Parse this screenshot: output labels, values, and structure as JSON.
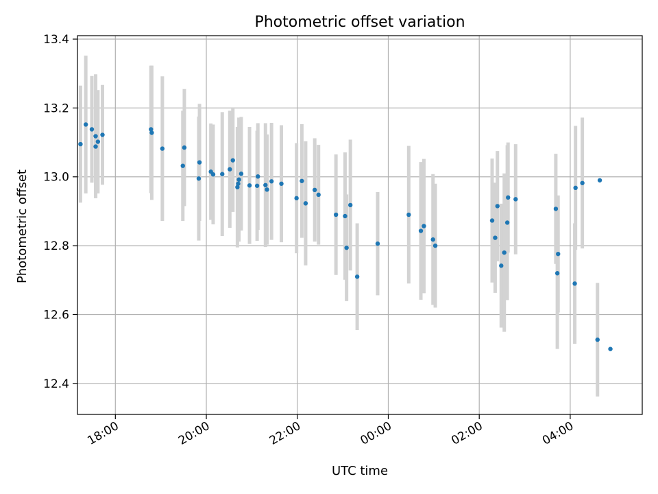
{
  "chart_data": {
    "type": "scatter",
    "title": "Photometric offset variation",
    "xlabel": "UTC time",
    "ylabel": "Photometric offset",
    "grid": true,
    "x_tick_labels": [
      "18:00",
      "20:00",
      "22:00",
      "00:00",
      "02:00",
      "04:00"
    ],
    "y_tick_labels": [
      "12.4",
      "12.6",
      "12.8",
      "13.0",
      "13.2",
      "13.4"
    ],
    "xlim": [
      "17:10",
      "05:35"
    ],
    "ylim": [
      12.31,
      13.41
    ],
    "colors": {
      "point": "#1f77b4",
      "errorbar": "#d3d3d3",
      "grid": "#b0b0b0"
    },
    "series": [
      {
        "x": [
          "17:14",
          "17:21",
          "17:29",
          "17:34",
          "17:34",
          "17:37",
          "17:43",
          "18:47",
          "18:48",
          "19:02",
          "19:29",
          "19:31",
          "19:50",
          "19:51",
          "20:06",
          "20:09",
          "20:21",
          "20:31",
          "20:35",
          "20:41",
          "20:42",
          "20:43",
          "20:46",
          "20:57",
          "21:07",
          "21:08",
          "21:18",
          "21:20",
          "21:26",
          "21:39",
          "21:59",
          "22:06",
          "22:11",
          "22:23",
          "22:28",
          "22:51",
          "23:03",
          "23:05",
          "23:10",
          "23:19",
          "23:46",
          "00:27",
          "00:43",
          "00:47",
          "00:59",
          "01:02",
          "02:17",
          "02:21",
          "02:24",
          "02:29",
          "02:33",
          "02:37",
          "02:38",
          "02:48",
          "03:41",
          "03:43",
          "03:44",
          "04:06",
          "04:07",
          "04:16",
          "04:36",
          "04:39",
          "04:53"
        ],
        "y": [
          13.095,
          13.152,
          13.138,
          13.118,
          13.088,
          13.102,
          13.122,
          13.138,
          13.128,
          13.082,
          13.032,
          13.085,
          12.995,
          13.042,
          13.015,
          13.007,
          13.008,
          13.022,
          13.048,
          12.97,
          12.98,
          12.992,
          13.009,
          12.975,
          12.974,
          13.001,
          12.976,
          12.963,
          12.987,
          12.98,
          12.938,
          12.988,
          12.923,
          12.962,
          12.948,
          12.89,
          12.886,
          12.794,
          12.918,
          12.71,
          12.806,
          12.89,
          12.843,
          12.857,
          12.818,
          12.8,
          12.873,
          12.823,
          12.915,
          12.742,
          12.78,
          12.867,
          12.94,
          12.935,
          12.907,
          12.72,
          12.776,
          12.69,
          12.968,
          12.982,
          12.527,
          12.99,
          12.5
        ],
        "err": [
          0.17,
          0.2,
          0.155,
          0.18,
          0.15,
          0.15,
          0.145,
          0.185,
          0.195,
          0.21,
          0.16,
          0.17,
          0.18,
          0.17,
          0.14,
          0.145,
          0.18,
          0.17,
          0.15,
          0.175,
          0.165,
          0.18,
          0.165,
          0.17,
          0.16,
          0.155,
          0.18,
          0.16,
          0.17,
          0.17,
          0.16,
          0.165,
          0.18,
          0.15,
          0.145,
          0.175,
          0.185,
          0.155,
          0.19,
          0.155,
          0.15,
          0.2,
          0.2,
          0.195,
          0.19,
          0.18,
          0.18,
          0.16,
          0.16,
          0.18,
          0.23,
          0.225,
          0.16,
          0.16,
          0.16,
          0.22,
          0.17,
          0.175,
          0.18,
          0.19,
          0.165,
          0.0,
          0.0
        ]
      }
    ]
  }
}
